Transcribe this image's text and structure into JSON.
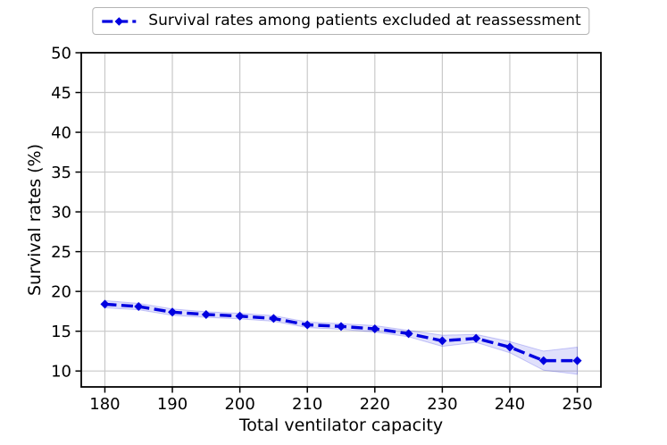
{
  "figure": {
    "background": "#ffffff",
    "spine_color": "#000000",
    "text_color": "#000000"
  },
  "legend": {
    "label": "Survival rates among patients excluded at reassessment",
    "border_color": "#b4b4b4",
    "line_color": "#0000e0"
  },
  "chart_data": {
    "type": "line",
    "title": "",
    "xlabel": "Total ventilator capacity",
    "ylabel": "Survival rates (%)",
    "x": [
      180,
      185,
      190,
      195,
      200,
      205,
      210,
      215,
      220,
      225,
      230,
      235,
      240,
      245,
      250
    ],
    "series": [
      {
        "name": "Survival rates among patients excluded at reassessment",
        "values": [
          18.4,
          18.1,
          17.4,
          17.1,
          16.9,
          16.6,
          15.8,
          15.6,
          15.3,
          14.7,
          13.8,
          14.1,
          13.0,
          11.3,
          11.3
        ],
        "band_lower": [
          17.95,
          17.7,
          17.0,
          16.75,
          16.55,
          16.25,
          15.45,
          15.25,
          14.9,
          14.3,
          13.1,
          13.6,
          12.3,
          10.1,
          9.6
        ],
        "band_upper": [
          18.85,
          18.5,
          17.8,
          17.45,
          17.25,
          16.95,
          16.15,
          15.95,
          15.7,
          15.1,
          14.5,
          14.6,
          13.7,
          12.5,
          13.0
        ],
        "color": "#0000e0",
        "band_color": "#0000e0",
        "band_opacity": 0.12,
        "line_style": "dashed",
        "marker": "diamond"
      }
    ],
    "xlim": [
      176.5,
      253.5
    ],
    "ylim": [
      8,
      50
    ],
    "xticks": [
      180,
      190,
      200,
      210,
      220,
      230,
      240,
      250
    ],
    "yticks": [
      10,
      15,
      20,
      25,
      30,
      35,
      40,
      45,
      50
    ],
    "grid": true,
    "grid_color": "#c9c9c9",
    "legend_position": "upper center, above plot"
  }
}
